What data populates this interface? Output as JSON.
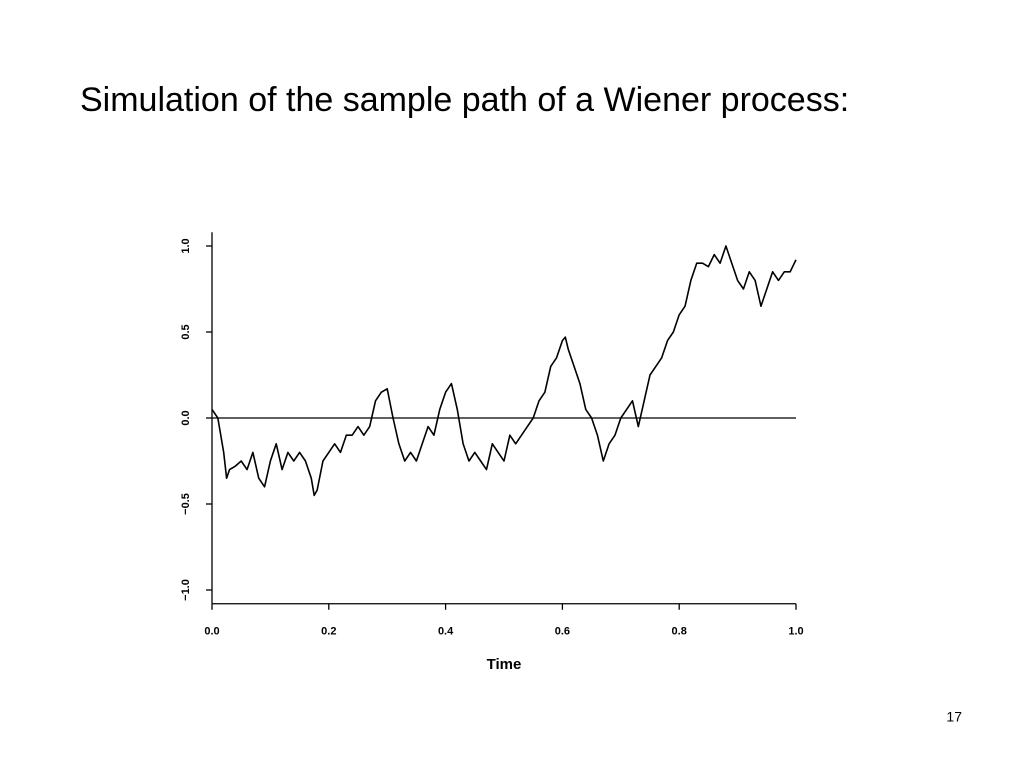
{
  "chart_data": {
    "type": "line",
    "title": "Simulation of the sample path of a Wiener process:",
    "xlabel": "Time",
    "color": "#000000",
    "hline": 0,
    "xlim": [
      0,
      1
    ],
    "ylim": [
      -1.08,
      1.08
    ],
    "xticks": [
      {
        "value": 0,
        "label": "0.0"
      },
      0.2,
      0.4,
      0.6,
      0.8,
      {
        "value": 1,
        "label": "1.0"
      }
    ],
    "yticks": [
      {
        "value": -1,
        "label": "−1.0"
      },
      {
        "value": -0.5,
        "label": "−0.5"
      },
      {
        "value": 0,
        "label": "0.0"
      },
      0.5,
      {
        "value": 1,
        "label": "1.0"
      }
    ],
    "x": [
      0,
      0.01,
      0.02,
      0.025,
      0.03,
      0.04,
      0.05,
      0.06,
      0.07,
      0.08,
      0.09,
      0.1,
      0.11,
      0.12,
      0.13,
      0.14,
      0.15,
      0.16,
      0.17,
      0.175,
      0.18,
      0.19,
      0.2,
      0.21,
      0.22,
      0.23,
      0.24,
      0.25,
      0.26,
      0.27,
      0.28,
      0.29,
      0.3,
      0.31,
      0.32,
      0.33,
      0.34,
      0.35,
      0.36,
      0.37,
      0.38,
      0.39,
      0.4,
      0.41,
      0.42,
      0.43,
      0.44,
      0.45,
      0.46,
      0.47,
      0.48,
      0.49,
      0.5,
      0.51,
      0.52,
      0.53,
      0.54,
      0.55,
      0.56,
      0.57,
      0.58,
      0.59,
      0.6,
      0.605,
      0.61,
      0.62,
      0.63,
      0.64,
      0.65,
      0.66,
      0.67,
      0.68,
      0.69,
      0.7,
      0.71,
      0.72,
      0.73,
      0.74,
      0.75,
      0.76,
      0.77,
      0.78,
      0.79,
      0.8,
      0.81,
      0.82,
      0.83,
      0.84,
      0.85,
      0.86,
      0.87,
      0.88,
      0.89,
      0.9,
      0.91,
      0.92,
      0.93,
      0.94,
      0.95,
      0.96,
      0.97,
      0.98,
      0.99,
      1
    ],
    "values": [
      0.05,
      0,
      -0.2,
      -0.35,
      -0.3,
      -0.28,
      -0.25,
      -0.3,
      -0.2,
      -0.35,
      -0.4,
      -0.25,
      -0.15,
      -0.3,
      -0.2,
      -0.25,
      -0.2,
      -0.25,
      -0.35,
      -0.45,
      -0.42,
      -0.25,
      -0.2,
      -0.15,
      -0.2,
      -0.1,
      -0.1,
      -0.05,
      -0.1,
      -0.05,
      0.1,
      0.15,
      0.17,
      0,
      -0.15,
      -0.25,
      -0.2,
      -0.25,
      -0.15,
      -0.05,
      -0.1,
      0.05,
      0.15,
      0.2,
      0.05,
      -0.15,
      -0.25,
      -0.2,
      -0.25,
      -0.3,
      -0.15,
      -0.2,
      -0.25,
      -0.1,
      -0.15,
      -0.1,
      -0.05,
      0,
      0.1,
      0.15,
      0.3,
      0.35,
      0.45,
      0.47,
      0.4,
      0.3,
      0.2,
      0.05,
      0,
      -0.1,
      -0.25,
      -0.15,
      -0.1,
      0,
      0.05,
      0.1,
      -0.05,
      0.1,
      0.25,
      0.3,
      0.35,
      0.45,
      0.5,
      0.6,
      0.65,
      0.8,
      0.9,
      0.9,
      0.88,
      0.95,
      0.9,
      1,
      0.9,
      0.8,
      0.75,
      0.85,
      0.8,
      0.65,
      0.75,
      0.85,
      0.8,
      0.85,
      0.85,
      0.92
    ]
  },
  "slide_number": "17"
}
